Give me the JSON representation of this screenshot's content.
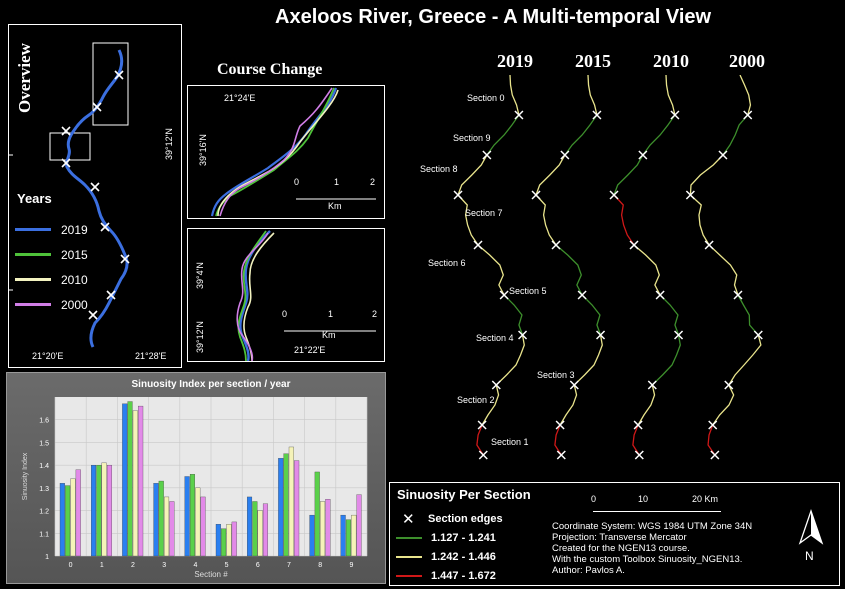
{
  "title": "Axeloos River, Greece - A Multi-temporal View",
  "overview": {
    "label": "Overview",
    "legend_title": "Years",
    "legend": [
      {
        "year": "2019",
        "color": "#3b6fe0"
      },
      {
        "year": "2015",
        "color": "#4fc23a"
      },
      {
        "year": "2010",
        "color": "#f3f3c0"
      },
      {
        "year": "2000",
        "color": "#d07ee6"
      }
    ],
    "x_ticks": [
      "21°20'E",
      "21°28'E"
    ],
    "y_tick": "39°12'N"
  },
  "course_change": {
    "label": "Course Change",
    "top": {
      "lon": "21°24'E",
      "lat": "39°16'N",
      "scale": [
        "0",
        "1",
        "2"
      ],
      "unit": "Km"
    },
    "bottom": {
      "lon": "21°22'E",
      "lat_a": "39°4'N",
      "lat_b": "39°12'N",
      "scale": [
        "0",
        "1",
        "2"
      ],
      "unit": "Km"
    }
  },
  "years_maps": {
    "years": [
      "2019",
      "2015",
      "2010",
      "2000"
    ],
    "sections": [
      "Section 0",
      "Section 9",
      "Section 8",
      "Section 7",
      "Section 6",
      "Section 5",
      "Section 4",
      "Section 3",
      "Section 2",
      "Section 1"
    ]
  },
  "chart_data": {
    "type": "bar",
    "title": "Sinuosity Index per section / year",
    "xlabel": "Section #",
    "ylabel": "Sinuosity Index",
    "ylim": [
      1,
      1.7
    ],
    "categories": [
      "0",
      "1",
      "2",
      "3",
      "4",
      "5",
      "6",
      "7",
      "8",
      "9"
    ],
    "y_ticks": [
      "1",
      "1.1",
      "1.2",
      "1.3",
      "1.4",
      "1.5",
      "1.6"
    ],
    "series": [
      {
        "color": "#2a7ff0",
        "values": [
          1.32,
          1.4,
          1.67,
          1.32,
          1.35,
          1.14,
          1.26,
          1.43,
          1.18,
          1.18
        ]
      },
      {
        "color": "#5ad04a",
        "values": [
          1.31,
          1.4,
          1.68,
          1.33,
          1.36,
          1.12,
          1.24,
          1.45,
          1.37,
          1.16
        ]
      },
      {
        "color": "#f5f3b8",
        "values": [
          1.34,
          1.41,
          1.64,
          1.26,
          1.3,
          1.14,
          1.2,
          1.48,
          1.24,
          1.18
        ]
      },
      {
        "color": "#e28ae8",
        "values": [
          1.38,
          1.4,
          1.66,
          1.24,
          1.26,
          1.15,
          1.23,
          1.42,
          1.25,
          1.27
        ]
      }
    ]
  },
  "sinuosity_legend": {
    "title": "Sinuosity Per Section",
    "edges_label": "Section edges",
    "classes": [
      {
        "label": "1.127 - 1.241",
        "color": "#3d8f2c"
      },
      {
        "label": "1.242 - 1.446",
        "color": "#e9e48c"
      },
      {
        "label": "1.447 - 1.672",
        "color": "#d01818"
      }
    ],
    "scale": [
      "0",
      "10",
      "20 Km"
    ],
    "notes": [
      "Coordinate System: WGS 1984 UTM Zone 34N",
      "Projection: Transverse Mercator",
      "Created for the NGEN13 course.",
      "With the custom Toolbox Sinuosity_NGEN13.",
      "Author: Pavlos A."
    ],
    "north": "N"
  }
}
